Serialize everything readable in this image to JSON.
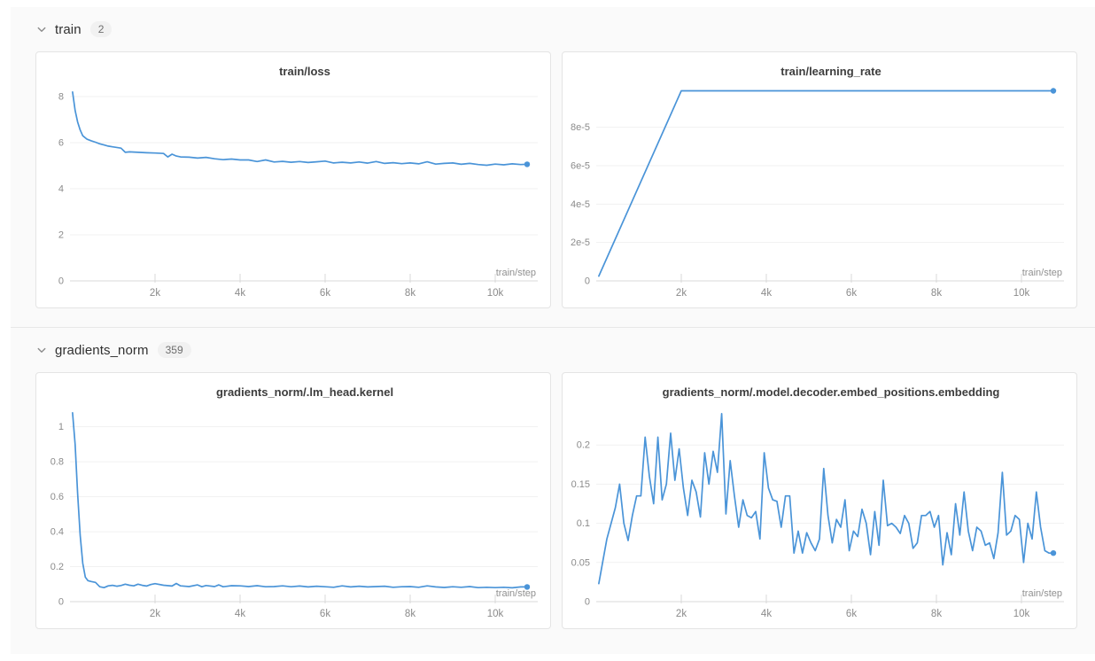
{
  "colors": {
    "accent": "#4a94d8",
    "grid": "#f1f1f1",
    "axis": "#d9d9d9",
    "tick_text": "#8b8b8b",
    "xlabel_text": "#909090",
    "section_bg": "#fafafa"
  },
  "sections": [
    {
      "label": "train",
      "count": "2",
      "chart_indexes": [
        0,
        1
      ]
    },
    {
      "label": "gradients_norm",
      "count": "359",
      "chart_indexes": [
        2,
        3
      ]
    }
  ],
  "chart_data": [
    {
      "type": "line",
      "title": "train/loss",
      "xlabel": "train/step",
      "legend_position": "none",
      "grid": "horizontal",
      "xlim": [
        0,
        11000
      ],
      "ylim": [
        0,
        8.5
      ],
      "xticks": [
        [
          2000,
          "2k"
        ],
        [
          4000,
          "4k"
        ],
        [
          6000,
          "6k"
        ],
        [
          8000,
          "8k"
        ],
        [
          10000,
          "10k"
        ]
      ],
      "yticks": [
        [
          0,
          "0"
        ],
        [
          2,
          "2"
        ],
        [
          4,
          "4"
        ],
        [
          6,
          "6"
        ],
        [
          8,
          "8"
        ]
      ],
      "end_marker": true,
      "points": [
        [
          60,
          8.2
        ],
        [
          120,
          7.4
        ],
        [
          180,
          6.9
        ],
        [
          240,
          6.55
        ],
        [
          300,
          6.3
        ],
        [
          400,
          6.15
        ],
        [
          500,
          6.08
        ],
        [
          600,
          6.02
        ],
        [
          700,
          5.95
        ],
        [
          800,
          5.9
        ],
        [
          900,
          5.85
        ],
        [
          1000,
          5.82
        ],
        [
          1200,
          5.76
        ],
        [
          1300,
          5.58
        ],
        [
          1400,
          5.6
        ],
        [
          1600,
          5.58
        ],
        [
          1800,
          5.56
        ],
        [
          2000,
          5.55
        ],
        [
          2200,
          5.53
        ],
        [
          2300,
          5.38
        ],
        [
          2400,
          5.5
        ],
        [
          2500,
          5.42
        ],
        [
          2600,
          5.38
        ],
        [
          2800,
          5.37
        ],
        [
          3000,
          5.33
        ],
        [
          3200,
          5.36
        ],
        [
          3400,
          5.3
        ],
        [
          3600,
          5.26
        ],
        [
          3800,
          5.29
        ],
        [
          4000,
          5.25
        ],
        [
          4200,
          5.25
        ],
        [
          4400,
          5.18
        ],
        [
          4600,
          5.25
        ],
        [
          4800,
          5.16
        ],
        [
          5000,
          5.19
        ],
        [
          5200,
          5.15
        ],
        [
          5400,
          5.18
        ],
        [
          5600,
          5.14
        ],
        [
          5800,
          5.17
        ],
        [
          6000,
          5.2
        ],
        [
          6200,
          5.12
        ],
        [
          6400,
          5.15
        ],
        [
          6600,
          5.12
        ],
        [
          6800,
          5.16
        ],
        [
          7000,
          5.11
        ],
        [
          7200,
          5.18
        ],
        [
          7400,
          5.1
        ],
        [
          7600,
          5.13
        ],
        [
          7800,
          5.09
        ],
        [
          8000,
          5.12
        ],
        [
          8200,
          5.08
        ],
        [
          8400,
          5.17
        ],
        [
          8600,
          5.07
        ],
        [
          8800,
          5.1
        ],
        [
          9000,
          5.12
        ],
        [
          9200,
          5.06
        ],
        [
          9400,
          5.1
        ],
        [
          9600,
          5.05
        ],
        [
          9800,
          5.02
        ],
        [
          10000,
          5.07
        ],
        [
          10200,
          5.04
        ],
        [
          10400,
          5.08
        ],
        [
          10600,
          5.05
        ],
        [
          10750,
          5.06
        ]
      ]
    },
    {
      "type": "line",
      "title": "train/learning_rate",
      "xlabel": "train/step",
      "legend_position": "none",
      "grid": "horizontal",
      "xlim": [
        0,
        11000
      ],
      "ylim": [
        0,
        0.000102
      ],
      "xticks": [
        [
          2000,
          "2k"
        ],
        [
          4000,
          "4k"
        ],
        [
          6000,
          "6k"
        ],
        [
          8000,
          "8k"
        ],
        [
          10000,
          "10k"
        ]
      ],
      "yticks": [
        [
          0,
          "0"
        ],
        [
          2e-05,
          "2e-5"
        ],
        [
          4e-05,
          "4e-5"
        ],
        [
          6e-05,
          "6e-5"
        ],
        [
          8e-05,
          "8e-5"
        ]
      ],
      "end_marker": true,
      "points": [
        [
          60,
          2.5e-06
        ],
        [
          2000,
          9.9e-05
        ],
        [
          10750,
          9.9e-05
        ]
      ]
    },
    {
      "type": "line",
      "title": "gradients_norm/.lm_head.kernel",
      "xlabel": "train/step",
      "legend_position": "none",
      "grid": "horizontal",
      "xlim": [
        0,
        11000
      ],
      "ylim": [
        0,
        1.12
      ],
      "xticks": [
        [
          2000,
          "2k"
        ],
        [
          4000,
          "4k"
        ],
        [
          6000,
          "6k"
        ],
        [
          8000,
          "8k"
        ],
        [
          10000,
          "10k"
        ]
      ],
      "yticks": [
        [
          0,
          "0"
        ],
        [
          0.2,
          "0.2"
        ],
        [
          0.4,
          "0.4"
        ],
        [
          0.6,
          "0.6"
        ],
        [
          0.8,
          "0.8"
        ],
        [
          1,
          "1"
        ]
      ],
      "end_marker": true,
      "points": [
        [
          60,
          1.08
        ],
        [
          120,
          0.9
        ],
        [
          180,
          0.62
        ],
        [
          240,
          0.38
        ],
        [
          300,
          0.22
        ],
        [
          360,
          0.14
        ],
        [
          420,
          0.12
        ],
        [
          500,
          0.115
        ],
        [
          600,
          0.11
        ],
        [
          700,
          0.085
        ],
        [
          800,
          0.08
        ],
        [
          900,
          0.09
        ],
        [
          1000,
          0.093
        ],
        [
          1100,
          0.088
        ],
        [
          1200,
          0.092
        ],
        [
          1300,
          0.1
        ],
        [
          1400,
          0.094
        ],
        [
          1500,
          0.09
        ],
        [
          1600,
          0.1
        ],
        [
          1700,
          0.093
        ],
        [
          1800,
          0.089
        ],
        [
          1900,
          0.098
        ],
        [
          2000,
          0.103
        ],
        [
          2200,
          0.094
        ],
        [
          2400,
          0.089
        ],
        [
          2500,
          0.104
        ],
        [
          2600,
          0.09
        ],
        [
          2800,
          0.086
        ],
        [
          3000,
          0.096
        ],
        [
          3100,
          0.085
        ],
        [
          3200,
          0.092
        ],
        [
          3400,
          0.086
        ],
        [
          3500,
          0.096
        ],
        [
          3600,
          0.085
        ],
        [
          3800,
          0.091
        ],
        [
          4000,
          0.09
        ],
        [
          4200,
          0.086
        ],
        [
          4400,
          0.091
        ],
        [
          4600,
          0.085
        ],
        [
          4800,
          0.086
        ],
        [
          5000,
          0.09
        ],
        [
          5200,
          0.085
        ],
        [
          5400,
          0.089
        ],
        [
          5600,
          0.084
        ],
        [
          5800,
          0.088
        ],
        [
          6000,
          0.085
        ],
        [
          6200,
          0.082
        ],
        [
          6400,
          0.09
        ],
        [
          6600,
          0.084
        ],
        [
          6800,
          0.088
        ],
        [
          7000,
          0.084
        ],
        [
          7200,
          0.086
        ],
        [
          7400,
          0.088
        ],
        [
          7600,
          0.082
        ],
        [
          7800,
          0.085
        ],
        [
          8000,
          0.086
        ],
        [
          8200,
          0.082
        ],
        [
          8400,
          0.09
        ],
        [
          8600,
          0.084
        ],
        [
          8800,
          0.081
        ],
        [
          9000,
          0.085
        ],
        [
          9200,
          0.082
        ],
        [
          9400,
          0.086
        ],
        [
          9600,
          0.08
        ],
        [
          9800,
          0.082
        ],
        [
          10000,
          0.08
        ],
        [
          10200,
          0.082
        ],
        [
          10400,
          0.079
        ],
        [
          10600,
          0.084
        ],
        [
          10750,
          0.084
        ]
      ]
    },
    {
      "type": "line",
      "title": "gradients_norm/.model.decoder.embed_positions.embedding",
      "xlabel": "train/step",
      "legend_position": "none",
      "grid": "horizontal",
      "xlim": [
        0,
        11000
      ],
      "ylim": [
        0,
        0.25
      ],
      "xticks": [
        [
          2000,
          "2k"
        ],
        [
          4000,
          "4k"
        ],
        [
          6000,
          "6k"
        ],
        [
          8000,
          "8k"
        ],
        [
          10000,
          "10k"
        ]
      ],
      "yticks": [
        [
          0,
          "0"
        ],
        [
          0.05,
          "0.05"
        ],
        [
          0.1,
          "0.1"
        ],
        [
          0.15,
          "0.15"
        ],
        [
          0.2,
          "0.2"
        ]
      ],
      "end_marker": true,
      "points": [
        [
          60,
          0.023
        ],
        [
          150,
          0.05
        ],
        [
          250,
          0.08
        ],
        [
          350,
          0.1
        ],
        [
          450,
          0.12
        ],
        [
          550,
          0.15
        ],
        [
          650,
          0.1
        ],
        [
          750,
          0.078
        ],
        [
          850,
          0.11
        ],
        [
          950,
          0.135
        ],
        [
          1050,
          0.135
        ],
        [
          1150,
          0.21
        ],
        [
          1250,
          0.16
        ],
        [
          1350,
          0.125
        ],
        [
          1450,
          0.21
        ],
        [
          1550,
          0.13
        ],
        [
          1650,
          0.15
        ],
        [
          1750,
          0.215
        ],
        [
          1850,
          0.155
        ],
        [
          1950,
          0.195
        ],
        [
          2050,
          0.145
        ],
        [
          2150,
          0.11
        ],
        [
          2250,
          0.155
        ],
        [
          2350,
          0.14
        ],
        [
          2450,
          0.108
        ],
        [
          2550,
          0.19
        ],
        [
          2650,
          0.15
        ],
        [
          2750,
          0.192
        ],
        [
          2850,
          0.165
        ],
        [
          2950,
          0.24
        ],
        [
          3050,
          0.112
        ],
        [
          3150,
          0.18
        ],
        [
          3250,
          0.135
        ],
        [
          3350,
          0.095
        ],
        [
          3450,
          0.13
        ],
        [
          3550,
          0.11
        ],
        [
          3650,
          0.107
        ],
        [
          3750,
          0.115
        ],
        [
          3850,
          0.08
        ],
        [
          3950,
          0.19
        ],
        [
          4050,
          0.145
        ],
        [
          4150,
          0.13
        ],
        [
          4250,
          0.128
        ],
        [
          4350,
          0.095
        ],
        [
          4450,
          0.135
        ],
        [
          4550,
          0.135
        ],
        [
          4650,
          0.062
        ],
        [
          4750,
          0.09
        ],
        [
          4850,
          0.062
        ],
        [
          4950,
          0.088
        ],
        [
          5050,
          0.075
        ],
        [
          5150,
          0.065
        ],
        [
          5250,
          0.08
        ],
        [
          5350,
          0.17
        ],
        [
          5450,
          0.11
        ],
        [
          5550,
          0.075
        ],
        [
          5650,
          0.105
        ],
        [
          5750,
          0.095
        ],
        [
          5850,
          0.13
        ],
        [
          5950,
          0.065
        ],
        [
          6050,
          0.09
        ],
        [
          6150,
          0.083
        ],
        [
          6250,
          0.118
        ],
        [
          6350,
          0.1
        ],
        [
          6450,
          0.06
        ],
        [
          6550,
          0.115
        ],
        [
          6650,
          0.072
        ],
        [
          6750,
          0.155
        ],
        [
          6850,
          0.097
        ],
        [
          6950,
          0.1
        ],
        [
          7050,
          0.095
        ],
        [
          7150,
          0.087
        ],
        [
          7250,
          0.11
        ],
        [
          7350,
          0.1
        ],
        [
          7450,
          0.068
        ],
        [
          7550,
          0.075
        ],
        [
          7650,
          0.11
        ],
        [
          7750,
          0.11
        ],
        [
          7850,
          0.115
        ],
        [
          7950,
          0.095
        ],
        [
          8050,
          0.11
        ],
        [
          8150,
          0.047
        ],
        [
          8250,
          0.088
        ],
        [
          8350,
          0.06
        ],
        [
          8450,
          0.125
        ],
        [
          8550,
          0.085
        ],
        [
          8650,
          0.14
        ],
        [
          8750,
          0.09
        ],
        [
          8850,
          0.065
        ],
        [
          8950,
          0.095
        ],
        [
          9050,
          0.09
        ],
        [
          9150,
          0.072
        ],
        [
          9250,
          0.075
        ],
        [
          9350,
          0.055
        ],
        [
          9450,
          0.088
        ],
        [
          9550,
          0.165
        ],
        [
          9650,
          0.085
        ],
        [
          9750,
          0.09
        ],
        [
          9850,
          0.11
        ],
        [
          9950,
          0.105
        ],
        [
          10050,
          0.05
        ],
        [
          10150,
          0.1
        ],
        [
          10250,
          0.08
        ],
        [
          10350,
          0.14
        ],
        [
          10450,
          0.095
        ],
        [
          10550,
          0.065
        ],
        [
          10650,
          0.062
        ],
        [
          10750,
          0.062
        ]
      ]
    }
  ]
}
